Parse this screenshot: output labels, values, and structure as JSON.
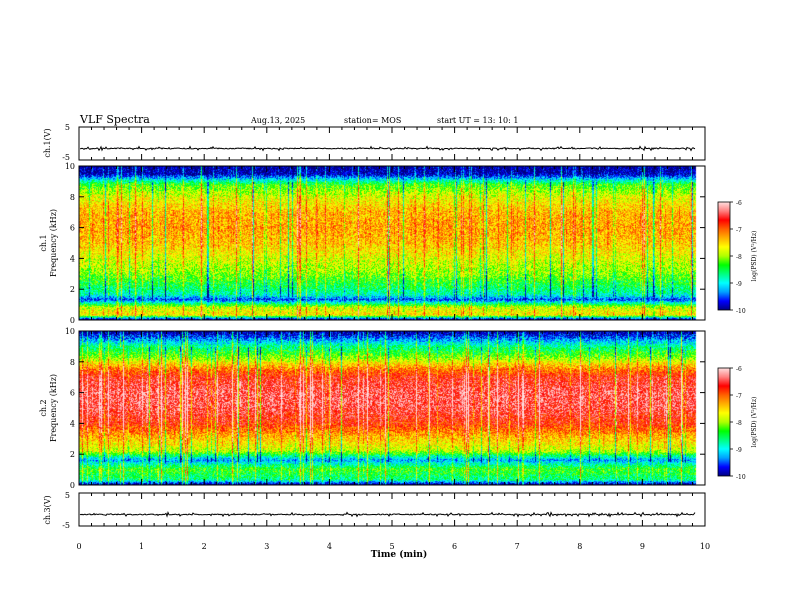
{
  "header": {
    "title": "VLF Spectra",
    "date": "Aug.13, 2025",
    "station": "station= MOS",
    "start": "start  UT =   13: 10: 1"
  },
  "x_axis": {
    "label": "Time  (min)",
    "ticks": [
      "0",
      "1",
      "2",
      "3",
      "4",
      "5",
      "6",
      "7",
      "8",
      "9",
      "10"
    ]
  },
  "colorbar": {
    "label": "log(PSD) (V²/Hz)",
    "ticks": [
      "-6",
      "-7",
      "-8",
      "-9",
      "-10"
    ]
  },
  "colors": {
    "palette": [
      "#000080",
      "#0000ff",
      "#00a0ff",
      "#00ffff",
      "#00ff80",
      "#00ff00",
      "#b0ff00",
      "#ffff00",
      "#ffb000",
      "#ff6000",
      "#ff0000",
      "#ff8080",
      "#ffe0e0"
    ],
    "trace": "#000000"
  },
  "chart_data": [
    {
      "type": "line",
      "name": "ch1-waveform",
      "ylabel": "ch.1(V)",
      "ylim": [
        -5,
        5
      ],
      "yticks": [
        "5",
        "-5"
      ],
      "xlim": [
        0,
        10
      ],
      "baseline": -1.5,
      "data_end_min": 9.85
    },
    {
      "type": "heatmap",
      "name": "ch1-spectrogram",
      "ylabel_top": "ch.1",
      "ylabel": "Frequency (kHz)",
      "ylim": [
        0,
        10
      ],
      "xlim": [
        0,
        10
      ],
      "yticks": [
        "0",
        "2",
        "4",
        "6",
        "8",
        "10"
      ],
      "data_end_min": 9.85,
      "zlim": [
        -10,
        -6
      ],
      "level_profile": [
        {
          "f": 0.0,
          "z": -10.0
        },
        {
          "f": 0.3,
          "z": -7.6
        },
        {
          "f": 0.8,
          "z": -7.9
        },
        {
          "f": 1.3,
          "z": -9.6
        },
        {
          "f": 1.6,
          "z": -8.9
        },
        {
          "f": 2.1,
          "z": -8.6
        },
        {
          "f": 3.0,
          "z": -8.1
        },
        {
          "f": 4.0,
          "z": -7.8
        },
        {
          "f": 5.0,
          "z": -7.45
        },
        {
          "f": 6.0,
          "z": -7.3
        },
        {
          "f": 7.0,
          "z": -7.4
        },
        {
          "f": 8.0,
          "z": -7.8
        },
        {
          "f": 8.8,
          "z": -8.3
        },
        {
          "f": 9.2,
          "z": -9.2
        },
        {
          "f": 9.5,
          "z": -9.9
        },
        {
          "f": 10.0,
          "z": -10.0
        }
      ]
    },
    {
      "type": "heatmap",
      "name": "ch2-spectrogram",
      "ylabel_top": "ch.2",
      "ylabel": "Frequency (kHz)",
      "ylim": [
        0,
        10
      ],
      "xlim": [
        0,
        10
      ],
      "yticks": [
        "0",
        "2",
        "4",
        "6",
        "8",
        "10"
      ],
      "data_end_min": 9.85,
      "zlim": [
        -10,
        -6
      ],
      "level_profile": [
        {
          "f": 0.0,
          "z": -10.0
        },
        {
          "f": 0.3,
          "z": -8.7
        },
        {
          "f": 1.0,
          "z": -8.3
        },
        {
          "f": 1.6,
          "z": -9.3
        },
        {
          "f": 2.2,
          "z": -7.9
        },
        {
          "f": 3.0,
          "z": -7.45
        },
        {
          "f": 4.0,
          "z": -6.8
        },
        {
          "f": 5.0,
          "z": -6.5
        },
        {
          "f": 6.0,
          "z": -6.45
        },
        {
          "f": 7.0,
          "z": -6.7
        },
        {
          "f": 7.6,
          "z": -7.2
        },
        {
          "f": 8.3,
          "z": -8.1
        },
        {
          "f": 9.0,
          "z": -8.7
        },
        {
          "f": 9.6,
          "z": -9.5
        },
        {
          "f": 10.0,
          "z": -10.0
        }
      ]
    },
    {
      "type": "line",
      "name": "ch3-waveform",
      "ylabel": "ch.3(V)",
      "ylim": [
        -5,
        5
      ],
      "yticks": [
        "5",
        "-5"
      ],
      "xlim": [
        0,
        10
      ],
      "baseline": -1.5,
      "data_end_min": 9.85
    }
  ]
}
